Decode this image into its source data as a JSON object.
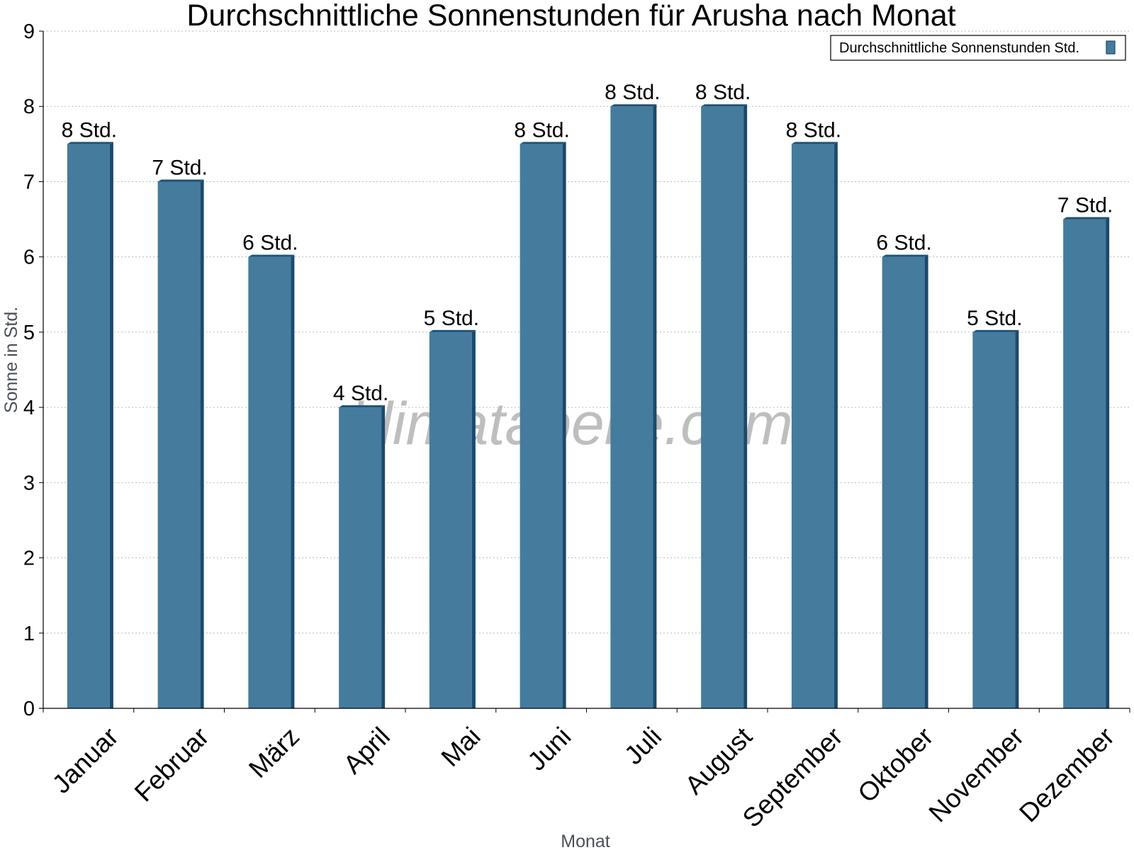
{
  "chart_data": {
    "type": "bar",
    "title": "Durchschnittliche Sonnenstunden für Arusha nach Monat",
    "xlabel": "Monat",
    "ylabel": "Sonne in Std.",
    "ylim": [
      0,
      9
    ],
    "yticks": [
      0,
      1,
      2,
      3,
      4,
      5,
      6,
      7,
      8,
      9
    ],
    "grid": true,
    "legend_position": "top-right",
    "categories": [
      "Januar",
      "Februar",
      "März",
      "April",
      "Mai",
      "Juni",
      "Juli",
      "August",
      "September",
      "Oktober",
      "November",
      "Dezember"
    ],
    "series": [
      {
        "name": "Durchschnittliche Sonnenstunden Std.",
        "color": "#457b9d",
        "values": [
          7.5,
          7.0,
          6.0,
          4.0,
          5.0,
          7.5,
          8.0,
          8.0,
          7.5,
          6.0,
          5.0,
          6.5
        ],
        "labels": [
          "8 Std.",
          "7 Std.",
          "6 Std.",
          "4 Std.",
          "5 Std.",
          "8 Std.",
          "8 Std.",
          "8 Std.",
          "8 Std.",
          "6 Std.",
          "5 Std.",
          "7 Std."
        ]
      }
    ],
    "watermark": "klimatabelle.com"
  }
}
